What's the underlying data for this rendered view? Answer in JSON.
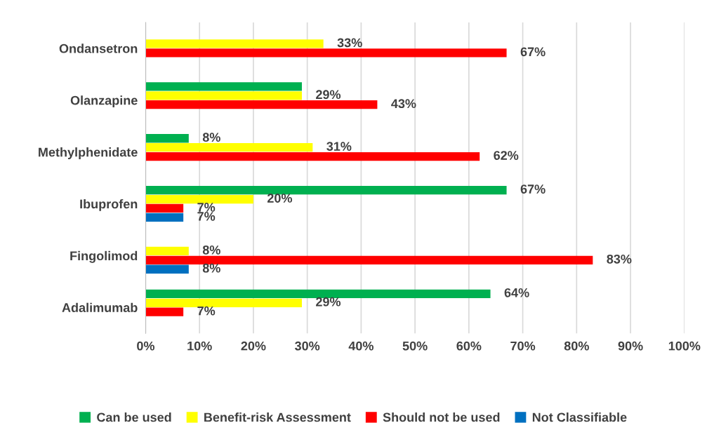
{
  "chart_data": {
    "type": "bar",
    "orientation": "horizontal",
    "categories": [
      "Ondansetron",
      "Olanzapine",
      "Methylphenidate",
      "Ibuprofen",
      "Fingolimod",
      "Adalimumab"
    ],
    "series": [
      {
        "name": "Can be used",
        "color": "#00b050",
        "values": [
          null,
          29,
          8,
          67,
          null,
          64
        ],
        "value_labels": [
          null,
          null,
          "8%",
          "67%",
          null,
          "64%"
        ]
      },
      {
        "name": "Benefit-risk Assessment",
        "color": "#ffff00",
        "values": [
          33,
          29,
          31,
          20,
          8,
          29
        ],
        "value_labels": [
          "33%",
          "29%",
          "31%",
          "20%",
          "8%",
          "29%"
        ]
      },
      {
        "name": "Should not be used",
        "color": "#ff0000",
        "values": [
          67,
          43,
          62,
          7,
          83,
          7
        ],
        "value_labels": [
          "67%",
          "43%",
          "62%",
          "7%",
          "83%",
          "7%"
        ]
      },
      {
        "name": "Not Classifiable",
        "color": "#0070c0",
        "values": [
          null,
          null,
          null,
          7,
          8,
          null
        ],
        "value_labels": [
          null,
          null,
          null,
          "7%",
          "8%",
          null
        ]
      }
    ],
    "xlim": [
      0,
      100
    ],
    "xticks": [
      {
        "value": 0,
        "label": "0%"
      },
      {
        "value": 10,
        "label": "10%"
      },
      {
        "value": 20,
        "label": "20%"
      },
      {
        "value": 30,
        "label": "30%"
      },
      {
        "value": 40,
        "label": "40%"
      },
      {
        "value": 50,
        "label": "50%"
      },
      {
        "value": 60,
        "label": "60%"
      },
      {
        "value": 70,
        "label": "70%"
      },
      {
        "value": 80,
        "label": "80%"
      },
      {
        "value": 90,
        "label": "90%"
      },
      {
        "value": 100,
        "label": "100%"
      }
    ],
    "grid": "x",
    "legend": "bottom"
  }
}
